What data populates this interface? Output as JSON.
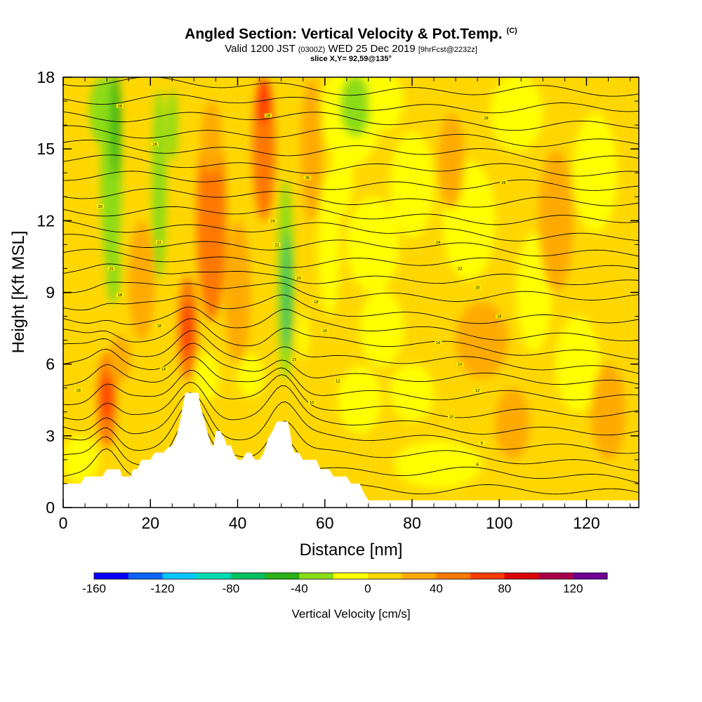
{
  "title": "Angled Section: Vertical Velocity & Pot.Temp.",
  "title_tag": "(C)",
  "subtitle": {
    "part1": "Valid 1200 JST",
    "utc": "(0300Z)",
    "part2": "WED 25 Dec 2019",
    "fcst": "[9hrFcst@2232z]"
  },
  "slice_info": "slice X,Y= 92,59@135°",
  "chart_data": {
    "type": "heatmap",
    "xlabel": "Distance [nm]",
    "ylabel": "Height [Kft MSL]",
    "xlim": [
      0,
      132
    ],
    "ylim": [
      0,
      18
    ],
    "x_ticks": [
      0,
      20,
      40,
      60,
      80,
      100,
      120
    ],
    "y_ticks": [
      0,
      3,
      6,
      9,
      12,
      15,
      18
    ],
    "colorbar": {
      "label": "Vertical Velocity [cm/s]",
      "tick_values": [
        -160,
        -120,
        -80,
        -40,
        0,
        40,
        80,
        120
      ],
      "bounds": [
        -160,
        140
      ],
      "step": 20,
      "colors": [
        "#0a00ff",
        "#0a64ff",
        "#00c8ff",
        "#00dcb4",
        "#00c060",
        "#28b414",
        "#8cdc14",
        "#ffff00",
        "#ffd700",
        "#ffaa00",
        "#ff7800",
        "#ff3c00",
        "#dc0000",
        "#aa0046",
        "#6e0096"
      ]
    },
    "terrain_kft": [
      [
        0,
        1.0
      ],
      [
        4,
        1.0
      ],
      [
        5,
        1.3
      ],
      [
        9,
        1.3
      ],
      [
        10,
        1.6
      ],
      [
        13,
        1.6
      ],
      [
        13.5,
        1.3
      ],
      [
        15.5,
        1.3
      ],
      [
        16,
        1.6
      ],
      [
        17,
        1.6
      ],
      [
        18,
        2.0
      ],
      [
        20,
        2.0
      ],
      [
        21,
        2.3
      ],
      [
        23,
        2.3
      ],
      [
        24,
        2.5
      ],
      [
        25,
        2.6
      ],
      [
        26,
        3.0
      ],
      [
        27,
        3.8
      ],
      [
        28,
        4.8
      ],
      [
        31,
        4.8
      ],
      [
        31.5,
        4.2
      ],
      [
        32.5,
        3.6
      ],
      [
        33,
        3.2
      ],
      [
        34,
        2.6
      ],
      [
        34.5,
        2.6
      ],
      [
        35,
        3.2
      ],
      [
        36,
        3.2
      ],
      [
        37,
        2.9
      ],
      [
        37.5,
        2.6
      ],
      [
        38.5,
        2.6
      ],
      [
        39,
        2.3
      ],
      [
        40,
        2.0
      ],
      [
        41,
        2.0
      ],
      [
        42,
        2.3
      ],
      [
        43,
        2.3
      ],
      [
        44,
        2.0
      ],
      [
        45,
        2.0
      ],
      [
        46,
        2.3
      ],
      [
        47,
        2.9
      ],
      [
        48,
        3.2
      ],
      [
        49,
        3.6
      ],
      [
        51.5,
        3.6
      ],
      [
        52,
        3.2
      ],
      [
        52.5,
        2.6
      ],
      [
        53,
        2.3
      ],
      [
        54,
        2.3
      ],
      [
        55,
        2.0
      ],
      [
        58,
        2.0
      ],
      [
        59,
        1.6
      ],
      [
        61,
        1.6
      ],
      [
        62,
        1.3
      ],
      [
        65,
        1.3
      ],
      [
        66,
        1.0
      ],
      [
        68,
        1.0
      ],
      [
        69,
        0.6
      ],
      [
        70,
        0.3
      ],
      [
        132,
        0.3
      ]
    ],
    "vertical_velocity_features_cm_s": [
      {
        "x": 11,
        "z": 13.8,
        "value": -40
      },
      {
        "x": 10,
        "z": 4.6,
        "value": 60
      },
      {
        "x": 28,
        "z": 7.5,
        "value": 60
      },
      {
        "x": 34,
        "z": 12.0,
        "value": 40
      },
      {
        "x": 45,
        "z": 16.0,
        "value": 40
      },
      {
        "x": 51,
        "z": 8.5,
        "value": -80
      },
      {
        "x": 67,
        "z": 16.5,
        "value": -40
      },
      {
        "x": 95,
        "z": 9.0,
        "value": 20
      }
    ],
    "pot_temp_isotherm_labels": [
      {
        "x": 3.5,
        "z": 4.9,
        "text": "18"
      },
      {
        "x": 13,
        "z": 8.9,
        "text": "18"
      },
      {
        "x": 11,
        "z": 10.0,
        "text": "20"
      },
      {
        "x": 8.5,
        "z": 12.6,
        "text": "26"
      },
      {
        "x": 13,
        "z": 16.8,
        "text": "28"
      },
      {
        "x": 21,
        "z": 15.2,
        "text": "28"
      },
      {
        "x": 22,
        "z": 11.1,
        "text": "22"
      },
      {
        "x": 22,
        "z": 7.6,
        "text": "18"
      },
      {
        "x": 23,
        "z": 5.8,
        "text": "14"
      },
      {
        "x": 47,
        "z": 16.4,
        "text": "28"
      },
      {
        "x": 56,
        "z": 13.8,
        "text": "26"
      },
      {
        "x": 48,
        "z": 12.0,
        "text": "24"
      },
      {
        "x": 49,
        "z": 11.0,
        "text": "22"
      },
      {
        "x": 54,
        "z": 9.6,
        "text": "20"
      },
      {
        "x": 58,
        "z": 8.6,
        "text": "18"
      },
      {
        "x": 60,
        "z": 7.4,
        "text": "16"
      },
      {
        "x": 53,
        "z": 6.2,
        "text": "15"
      },
      {
        "x": 63,
        "z": 5.3,
        "text": "12"
      },
      {
        "x": 57,
        "z": 4.4,
        "text": "10"
      },
      {
        "x": 97,
        "z": 16.3,
        "text": "28"
      },
      {
        "x": 101,
        "z": 13.6,
        "text": "26"
      },
      {
        "x": 86,
        "z": 11.1,
        "text": "24"
      },
      {
        "x": 91,
        "z": 10.0,
        "text": "22"
      },
      {
        "x": 95,
        "z": 9.2,
        "text": "20"
      },
      {
        "x": 100,
        "z": 8.0,
        "text": "18"
      },
      {
        "x": 86,
        "z": 6.9,
        "text": "16"
      },
      {
        "x": 91,
        "z": 6.0,
        "text": "14"
      },
      {
        "x": 95,
        "z": 4.9,
        "text": "12"
      },
      {
        "x": 89,
        "z": 3.8,
        "text": "10"
      },
      {
        "x": 96,
        "z": 2.7,
        "text": "8"
      },
      {
        "x": 95,
        "z": 1.8,
        "text": "6"
      }
    ]
  }
}
